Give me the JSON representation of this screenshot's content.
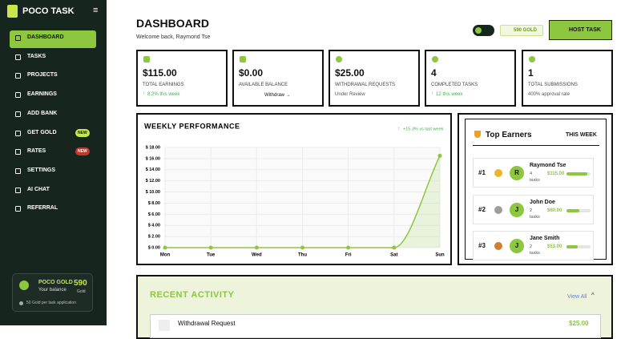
{
  "sidebar": {
    "brand": "POCO TASK",
    "menu": [
      {
        "label": "DASHBOARD"
      },
      {
        "label": "TASKS"
      },
      {
        "label": "PROJECTS"
      },
      {
        "label": "EARNINGS"
      },
      {
        "label": "ADD BANK"
      },
      {
        "label": "GET GOLD",
        "badge": "NEW"
      },
      {
        "label": "RATES",
        "badge": "NEW"
      },
      {
        "label": "SETTINGS"
      },
      {
        "label": "AI CHAT"
      },
      {
        "label": "REFERRAL"
      }
    ],
    "balance": {
      "title": "POCO GOLD",
      "subtitle": "Your balance",
      "amount": "590",
      "unit": "Gold",
      "note": "50 Gold per task application"
    }
  },
  "header": {
    "title": "DASHBOARD",
    "welcome": "Welcome back, Raymond Tse",
    "gold": "590 GOLD",
    "button": "HOST TASK"
  },
  "stats": [
    {
      "value": "$115.00",
      "label": "TOTAL EARNINGS",
      "note": "8.2% this week"
    },
    {
      "value": "$0.00",
      "label": "AVAILABLE BALANCE",
      "note": "Withdraw →"
    },
    {
      "value": "$25.00",
      "label": "WITHDRAWAL REQUESTS",
      "note": "Under Review"
    },
    {
      "value": "4",
      "label": "COMPLETED TASKS",
      "note": "12 this week"
    },
    {
      "value": "1",
      "label": "TOTAL SUBMISSIONS",
      "note": "400% approval rate"
    }
  ],
  "chart_data": {
    "type": "line",
    "title": "WEEKLY PERFORMANCE",
    "annotation": "+15.3% vs last week",
    "categories": [
      "Mon",
      "Tue",
      "Wed",
      "Thu",
      "Fri",
      "Sat",
      "Sun"
    ],
    "values": [
      0,
      0,
      0,
      0,
      0,
      0,
      16.5
    ],
    "color": "#8dc63f",
    "ylim": [
      0,
      18
    ],
    "yticks": [
      {
        "value": 0,
        "label": "$ 0.00"
      },
      {
        "value": 2,
        "label": "$ 2.00"
      },
      {
        "value": 4,
        "label": "$ 4.00"
      },
      {
        "value": 6,
        "label": "$ 6.00"
      },
      {
        "value": 8,
        "label": "$ 8.00"
      },
      {
        "value": 10,
        "label": "$ 10.00"
      },
      {
        "value": 12,
        "label": "$ 12.00"
      },
      {
        "value": 14,
        "label": "$ 14.00"
      },
      {
        "value": 16,
        "label": "$ 16.00"
      },
      {
        "value": 18,
        "label": "$ 18.00"
      }
    ],
    "grid": true
  },
  "top_earners": {
    "title": "Top Earners",
    "period": "THIS WEEK",
    "rows": [
      {
        "rank": "#1",
        "initial": "R",
        "name": "Raymond Tse",
        "tasks": "4 tasks",
        "amount": "$115.00"
      },
      {
        "rank": "#2",
        "initial": "J",
        "name": "John Doe",
        "tasks": "2 tasks",
        "amount": "$60.00"
      },
      {
        "rank": "#3",
        "initial": "J",
        "name": "Jane Smith",
        "tasks": "2 tasks",
        "amount": "$53.00"
      }
    ]
  },
  "recent_activity": {
    "title": "RECENT ACTIVITY",
    "link": "View All",
    "items": [
      {
        "title": "Withdrawal Request",
        "amount": "$25.00"
      }
    ]
  }
}
